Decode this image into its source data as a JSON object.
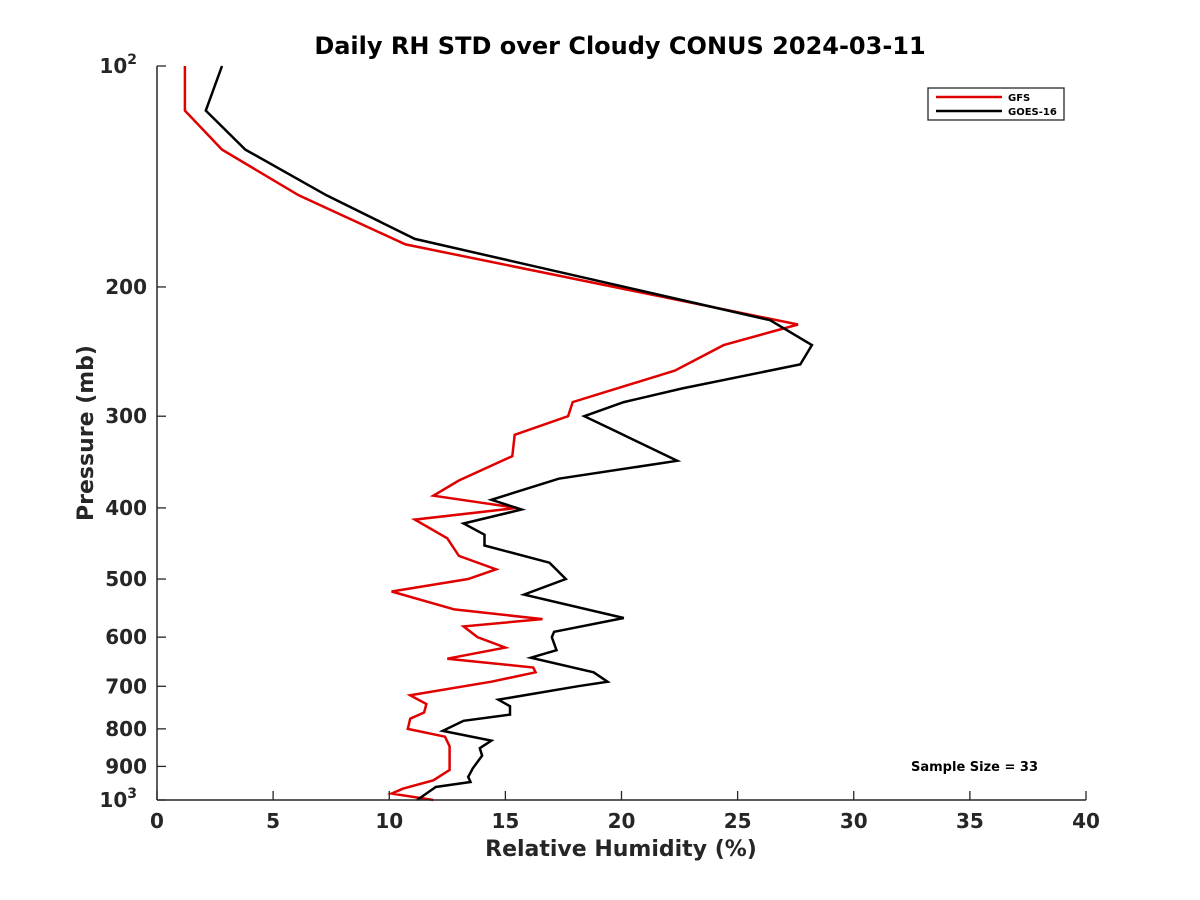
{
  "chart_data": {
    "type": "line",
    "title": "Daily RH STD over Cloudy CONUS 2024-03-11",
    "xlabel": "Relative Humidity (%)",
    "ylabel": "Pressure (mb)",
    "xlim": [
      0,
      40
    ],
    "ylim": [
      100,
      1000
    ],
    "yscale": "log",
    "y_reversed": true,
    "xticks": [
      0,
      5,
      10,
      15,
      20,
      25,
      30,
      35,
      40
    ],
    "xtick_labels": [
      "0",
      "5",
      "10",
      "15",
      "20",
      "25",
      "30",
      "35",
      "40"
    ],
    "yticks": [
      100,
      200,
      300,
      400,
      500,
      600,
      700,
      800,
      900,
      1000
    ],
    "ytick_labels": [
      {
        "value": 100,
        "base": "10",
        "exp": "2"
      },
      {
        "value": 200,
        "base": "200",
        "exp": ""
      },
      {
        "value": 300,
        "base": "300",
        "exp": ""
      },
      {
        "value": 400,
        "base": "400",
        "exp": ""
      },
      {
        "value": 500,
        "base": "500",
        "exp": ""
      },
      {
        "value": 600,
        "base": "600",
        "exp": ""
      },
      {
        "value": 700,
        "base": "700",
        "exp": ""
      },
      {
        "value": 800,
        "base": "800",
        "exp": ""
      },
      {
        "value": 900,
        "base": "900",
        "exp": ""
      },
      {
        "value": 1000,
        "base": "10",
        "exp": "3"
      }
    ],
    "grid": false,
    "legend_position": "top-right",
    "annotation": "Sample Size = 33",
    "series": [
      {
        "name": "GFS",
        "color": "#e00000",
        "points": [
          [
            1.2,
            100
          ],
          [
            1.2,
            115
          ],
          [
            2.8,
            130
          ],
          [
            6.1,
            150
          ],
          [
            10.7,
            175
          ],
          [
            27.6,
            225
          ],
          [
            24.4,
            240
          ],
          [
            22.3,
            260
          ],
          [
            17.9,
            287
          ],
          [
            17.7,
            300
          ],
          [
            15.4,
            318
          ],
          [
            15.3,
            340
          ],
          [
            13.0,
            367
          ],
          [
            11.9,
            385
          ],
          [
            15.5,
            400
          ],
          [
            11.1,
            415
          ],
          [
            12.5,
            440
          ],
          [
            13.0,
            465
          ],
          [
            14.6,
            485
          ],
          [
            13.4,
            500
          ],
          [
            10.1,
            520
          ],
          [
            12.8,
            550
          ],
          [
            16.6,
            567
          ],
          [
            13.2,
            580
          ],
          [
            13.8,
            600
          ],
          [
            15.0,
            620
          ],
          [
            12.5,
            642
          ],
          [
            16.2,
            660
          ],
          [
            16.3,
            670
          ],
          [
            14.4,
            690
          ],
          [
            10.9,
            720
          ],
          [
            11.6,
            740
          ],
          [
            11.5,
            760
          ],
          [
            10.9,
            775
          ],
          [
            10.8,
            800
          ],
          [
            12.4,
            820
          ],
          [
            12.6,
            845
          ],
          [
            12.6,
            870
          ],
          [
            12.6,
            910
          ],
          [
            11.9,
            940
          ],
          [
            10.6,
            965
          ],
          [
            10.1,
            980
          ],
          [
            11.9,
            1000
          ]
        ]
      },
      {
        "name": "GOES-16",
        "color": "#000000",
        "points": [
          [
            2.8,
            100
          ],
          [
            2.1,
            115
          ],
          [
            3.8,
            130
          ],
          [
            7.3,
            150
          ],
          [
            11.1,
            172
          ],
          [
            26.4,
            222
          ],
          [
            28.2,
            240
          ],
          [
            27.7,
            255
          ],
          [
            22.6,
            275
          ],
          [
            20.1,
            287
          ],
          [
            18.4,
            300
          ],
          [
            19.8,
            315
          ],
          [
            22.4,
            345
          ],
          [
            17.3,
            365
          ],
          [
            14.4,
            390
          ],
          [
            15.7,
            402
          ],
          [
            13.2,
            420
          ],
          [
            14.1,
            435
          ],
          [
            14.1,
            450
          ],
          [
            16.9,
            475
          ],
          [
            17.6,
            500
          ],
          [
            15.8,
            525
          ],
          [
            20.1,
            565
          ],
          [
            17.1,
            590
          ],
          [
            17.0,
            600
          ],
          [
            17.2,
            625
          ],
          [
            16.1,
            640
          ],
          [
            18.8,
            670
          ],
          [
            19.4,
            690
          ],
          [
            18.1,
            700
          ],
          [
            14.7,
            730
          ],
          [
            15.2,
            745
          ],
          [
            15.2,
            765
          ],
          [
            13.2,
            780
          ],
          [
            12.3,
            805
          ],
          [
            14.4,
            830
          ],
          [
            13.9,
            850
          ],
          [
            14.0,
            870
          ],
          [
            13.6,
            905
          ],
          [
            13.4,
            930
          ],
          [
            13.5,
            945
          ],
          [
            12.0,
            960
          ],
          [
            11.9,
            965
          ],
          [
            11.2,
            1000
          ]
        ]
      }
    ]
  }
}
